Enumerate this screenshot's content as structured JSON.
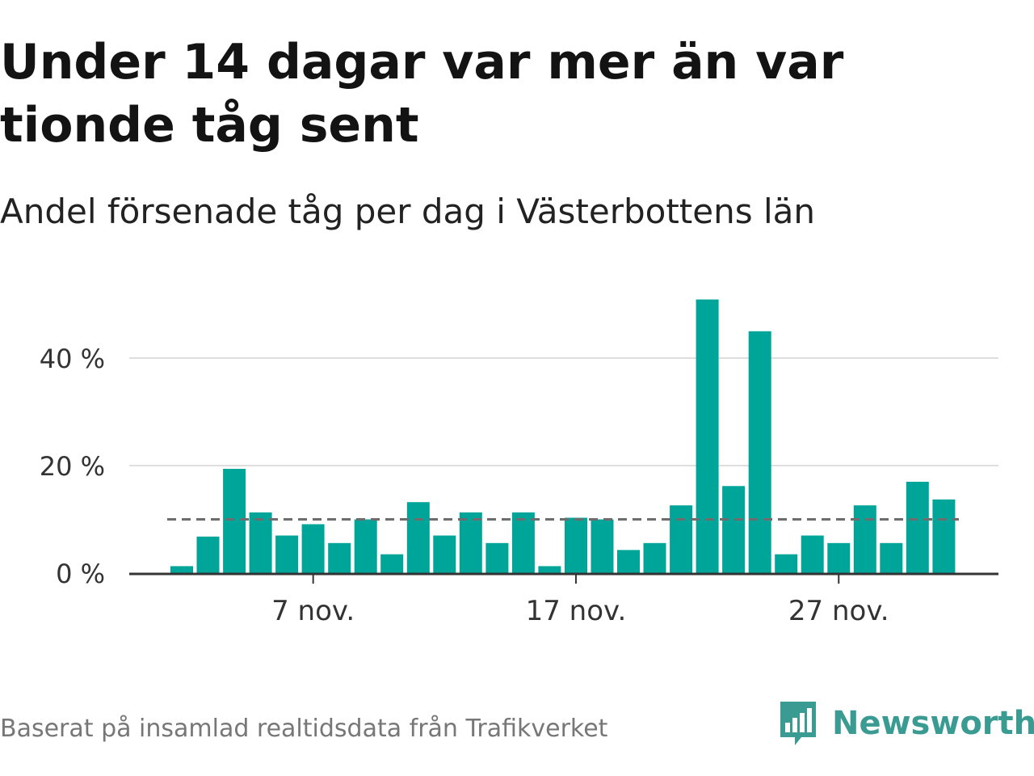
{
  "chart_data": {
    "type": "bar",
    "title": "Under 14 dagar var mer än var tionde tåg sent",
    "subtitle": "Andel försenade tåg per dag i Västerbottens län",
    "x": [
      "2024-11-02",
      "2024-11-03",
      "2024-11-04",
      "2024-11-05",
      "2024-11-06",
      "2024-11-07",
      "2024-11-08",
      "2024-11-09",
      "2024-11-10",
      "2024-11-11",
      "2024-11-12",
      "2024-11-13",
      "2024-11-14",
      "2024-11-15",
      "2024-11-16",
      "2024-11-17",
      "2024-11-18",
      "2024-11-19",
      "2024-11-20",
      "2024-11-21",
      "2024-11-22",
      "2024-11-23",
      "2024-11-24",
      "2024-11-25",
      "2024-11-26",
      "2024-11-27",
      "2024-11-28",
      "2024-11-29",
      "2024-11-30",
      "2024-12-01"
    ],
    "values": [
      1.3,
      6.8,
      19.4,
      11.3,
      7.0,
      9.1,
      5.6,
      10.0,
      3.5,
      13.2,
      7.0,
      11.3,
      5.6,
      11.3,
      1.3,
      10.3,
      10.0,
      4.3,
      5.6,
      12.6,
      50.9,
      16.2,
      45.0,
      3.5,
      7.0,
      5.6,
      12.6,
      5.6,
      17.0,
      13.7
    ],
    "reference_line": 10,
    "color": "#00a59a",
    "reference_color": "#6d6d6d",
    "ylim": [
      0,
      55
    ],
    "yticks": [
      0,
      20,
      40
    ],
    "ytick_labels": [
      "0 %",
      "20 %",
      "40 %"
    ],
    "xticks": [
      "2024-11-07",
      "2024-11-17",
      "2024-11-27"
    ],
    "xtick_labels": [
      "7 nov.",
      "17 nov.",
      "27 nov."
    ],
    "grid": true
  },
  "footer": {
    "source": "Baserat på insamlad realtidsdata från Trafikverket",
    "brand": "Newsworthy"
  },
  "icons": {
    "brand_logo": "newsworthy-bar-chart-logo"
  }
}
